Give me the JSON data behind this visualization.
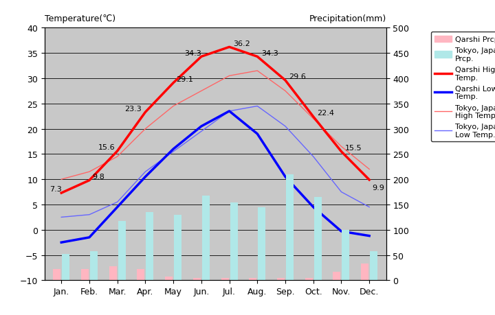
{
  "months": [
    "Jan.",
    "Feb.",
    "Mar.",
    "Apr.",
    "May",
    "Jun.",
    "Jul.",
    "Aug.",
    "Sep.",
    "Oct.",
    "Nov.",
    "Dec."
  ],
  "qarshi_high": [
    7.3,
    9.8,
    15.6,
    23.3,
    29.1,
    34.3,
    36.2,
    34.3,
    29.6,
    22.4,
    15.5,
    9.9
  ],
  "qarshi_low": [
    -2.5,
    -1.5,
    4.5,
    10.5,
    16.0,
    20.5,
    23.5,
    19.0,
    10.5,
    4.5,
    -0.3,
    -1.2
  ],
  "tokyo_high": [
    10.0,
    11.5,
    14.5,
    20.0,
    24.5,
    27.5,
    30.5,
    31.5,
    27.5,
    22.0,
    16.5,
    12.0
  ],
  "tokyo_low": [
    2.5,
    3.0,
    5.5,
    11.5,
    15.5,
    19.5,
    23.5,
    24.5,
    20.5,
    14.5,
    7.5,
    4.5
  ],
  "qarshi_prcp_mm": [
    22,
    22,
    28,
    22,
    8,
    5,
    5,
    5,
    5,
    5,
    17,
    33
  ],
  "tokyo_prcp_mm": [
    52,
    58,
    117,
    135,
    130,
    168,
    154,
    145,
    210,
    165,
    100,
    57
  ],
  "ylabel_left": "Temperature(℃)",
  "ylabel_right": "Precipitation(mm)",
  "ylim_left": [
    -10,
    40
  ],
  "ylim_right": [
    0,
    500
  ],
  "yticks_left": [
    -10,
    -5,
    0,
    5,
    10,
    15,
    20,
    25,
    30,
    35,
    40
  ],
  "yticks_right": [
    0,
    50,
    100,
    150,
    200,
    250,
    300,
    350,
    400,
    450,
    500
  ],
  "bg_color": "#c8c8c8",
  "qarshi_high_color": "#ff0000",
  "qarshi_low_color": "#0000ff",
  "tokyo_high_color": "#ff6666",
  "tokyo_low_color": "#6666ff",
  "qarshi_prcp_color": "#ffb6c1",
  "tokyo_prcp_color": "#b0e8e8",
  "title_left": "Temperature(℃)",
  "title_right": "Precipitation(mm)"
}
